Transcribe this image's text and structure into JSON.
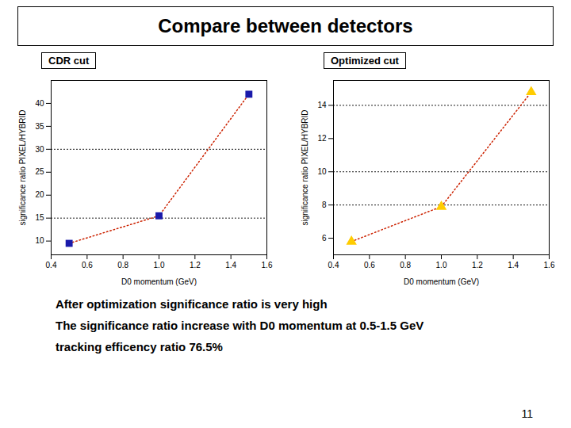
{
  "title": "Compare between detectors",
  "chart_data": [
    {
      "type": "line",
      "title": "CDR cut",
      "x": [
        0.5,
        1.0,
        1.5
      ],
      "series": [
        {
          "type": "line",
          "color": "#cc2200",
          "line_style": "dotted",
          "values": [
            9.5,
            15.5,
            42.0
          ]
        },
        {
          "type": "scatter",
          "color": "#1a1aaa",
          "marker": "square",
          "values": [
            9.5,
            15.5,
            42.0
          ]
        }
      ],
      "hlines": [
        15,
        30
      ],
      "xlim": [
        0.4,
        1.6
      ],
      "xticks": [
        0.4,
        0.6,
        0.8,
        {
          "value": 1.0,
          "label": "1.0"
        },
        1.2,
        1.4,
        1.6
      ],
      "ylim": [
        7,
        45
      ],
      "yticks": [
        10,
        15,
        20,
        25,
        30,
        35,
        40
      ],
      "xlabel": "D0 momentum (GeV)",
      "ylabel": "significance ratio PIXEL/HYBRID"
    },
    {
      "type": "line",
      "title": "Optimized cut",
      "x": [
        0.5,
        1.0,
        1.5
      ],
      "series": [
        {
          "type": "line",
          "color": "#cc2200",
          "line_style": "dotted",
          "values": [
            5.8,
            7.9,
            14.8
          ]
        },
        {
          "type": "scatter",
          "color": "#ffcc00",
          "marker": "triangle",
          "values": [
            5.8,
            7.9,
            14.8
          ]
        }
      ],
      "hlines": [
        8,
        10,
        14
      ],
      "xlim": [
        0.4,
        1.6
      ],
      "xticks": [
        0.4,
        0.6,
        0.8,
        {
          "value": 1.0,
          "label": "1.0"
        },
        1.2,
        1.4,
        1.6
      ],
      "ylim": [
        5,
        15.5
      ],
      "yticks": [
        6,
        8,
        10,
        12,
        14
      ],
      "xlabel": "D0 momentum (GeV)",
      "ylabel": "significance ratio PIXEL/HYBRID"
    }
  ],
  "annotations": [
    "After optimization significance ratio is very high",
    "The significance ratio increase with D0 momentum at 0.5-1.5 GeV",
    "tracking efficency ratio 76.5%"
  ],
  "page_number": "11"
}
